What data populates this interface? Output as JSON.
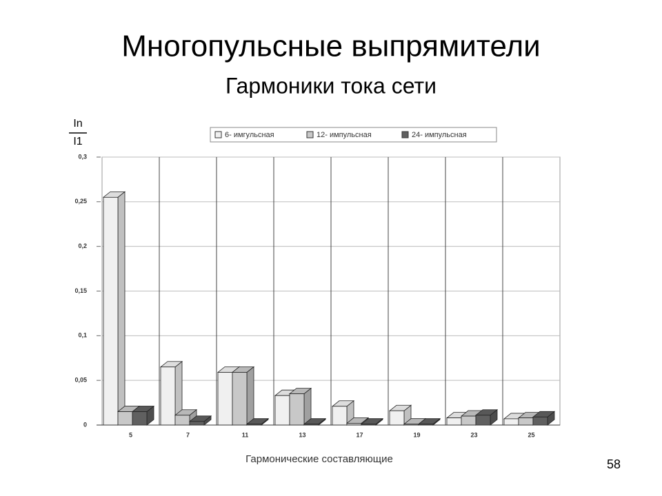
{
  "title": "Многопульсные выпрямители",
  "subtitle": "Гармоники тока сети",
  "slide_number": "58",
  "chart_data": {
    "type": "bar3d",
    "ylabel_top": "In",
    "ylabel_bottom": "I1",
    "xlabel": "Гармонические составляющие",
    "categories": [
      "5",
      "7",
      "11",
      "13",
      "17",
      "19",
      "23",
      "25"
    ],
    "series": [
      {
        "name": "6- имгульсная",
        "color": "#f0f0f0",
        "values": [
          0.255,
          0.065,
          0.059,
          0.033,
          0.021,
          0.016,
          0.008,
          0.007
        ]
      },
      {
        "name": "12- импульсная",
        "color": "#c8c8c8",
        "values": [
          0.015,
          0.011,
          0.059,
          0.035,
          0.002,
          0.001,
          0.01,
          0.008
        ]
      },
      {
        "name": "24- импульсная",
        "color": "#606060",
        "values": [
          0.015,
          0.004,
          0.001,
          0.001,
          0.001,
          0.001,
          0.011,
          0.009
        ]
      }
    ],
    "ylim": [
      0,
      0.3
    ],
    "yticks": [
      0,
      {
        "value": 0.05,
        "label": "0,05"
      },
      {
        "value": 0.1,
        "label": "0,1"
      },
      {
        "value": 0.15,
        "label": "0,15"
      },
      {
        "value": 0.2,
        "label": "0,2"
      },
      {
        "value": 0.25,
        "label": "0,25"
      },
      {
        "value": 0.3,
        "label": "0,3"
      }
    ],
    "grid": true
  }
}
